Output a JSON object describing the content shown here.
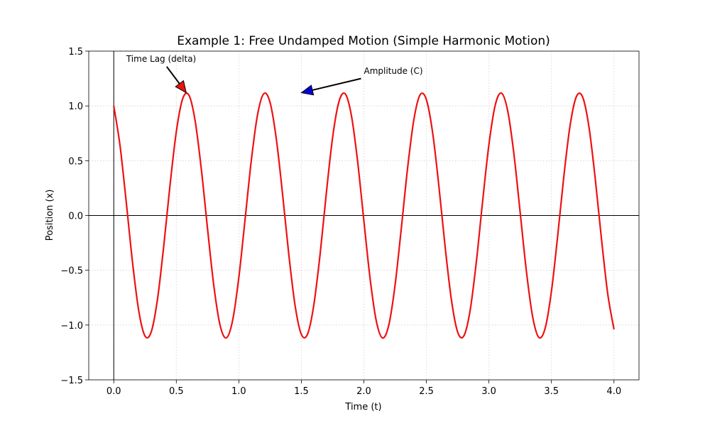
{
  "chart_data": {
    "type": "line",
    "title": "Example 1: Free Undamped Motion (Simple Harmonic Motion)",
    "xlabel": "Time (t)",
    "ylabel": "Position (x)",
    "x": [
      0,
      0.05,
      0.1,
      0.15,
      0.2,
      0.25,
      0.3,
      0.35,
      0.4,
      0.45,
      0.5,
      0.55,
      0.6,
      0.65,
      0.7,
      0.75,
      0.8,
      0.85,
      0.9,
      0.95,
      1,
      1.05,
      1.1,
      1.15,
      1.2,
      1.25,
      1.3,
      1.35,
      1.4,
      1.45,
      1.5,
      1.55,
      1.6,
      1.65,
      1.7,
      1.75,
      1.8,
      1.85,
      1.9,
      1.95,
      2,
      2.05,
      2.1,
      2.15,
      2.2,
      2.25,
      2.3,
      2.35,
      2.4,
      2.45,
      2.5,
      2.55,
      2.6,
      2.65,
      2.7,
      2.75,
      2.8,
      2.85,
      2.9,
      2.95,
      3,
      3.05,
      3.1,
      3.15,
      3.2,
      3.25,
      3.3,
      3.35,
      3.4,
      3.45,
      3.5,
      3.55,
      3.6,
      3.65,
      3.7,
      3.75,
      3.8,
      3.85,
      3.9,
      3.95,
      4
    ],
    "values": [
      1.0,
      0.638,
      0.12,
      -0.428,
      -0.871,
      -1.1,
      -1.061,
      -0.761,
      -0.275,
      0.278,
      0.763,
      1.062,
      1.1,
      0.869,
      0.425,
      -0.122,
      -0.64,
      -1.001,
      -1.117,
      -0.96,
      -0.567,
      -0.036,
      0.504,
      0.921,
      1.112,
      1.031,
      0.697,
      0.193,
      -0.359,
      -0.822,
      -1.085,
      -1.082,
      -0.814,
      -0.353,
      0.206,
      0.712,
      1.036,
      1.111,
      0.914,
      0.493,
      -0.048,
      -0.578,
      -0.966,
      -1.118,
      -0.996,
      -0.63,
      -0.11,
      0.437,
      0.877,
      1.102,
      1.057,
      0.754,
      0.266,
      -0.288,
      -0.77,
      -1.064,
      -1.098,
      -0.864,
      -0.416,
      0.134,
      0.648,
      1.005,
      1.117,
      0.955,
      0.559,
      0.025,
      -0.513,
      -0.927,
      -1.113,
      -1.027,
      -0.69,
      -0.184,
      0.368,
      0.829,
      1.087,
      1.079,
      0.807,
      0.337,
      -0.215,
      -0.715,
      -1.039
    ],
    "color": "#ee1111",
    "xlim": [
      -0.2,
      4.2
    ],
    "xticks": [
      {
        "value": 0,
        "label": "0.0"
      },
      {
        "value": 0.5,
        "label": "0.5"
      },
      {
        "value": 1,
        "label": "1.0"
      },
      {
        "value": 1.5,
        "label": "1.5"
      },
      {
        "value": 2,
        "label": "2.0"
      },
      {
        "value": 2.5,
        "label": "2.5"
      },
      {
        "value": 3,
        "label": "3.0"
      },
      {
        "value": 3.5,
        "label": "3.5"
      },
      {
        "value": 4,
        "label": "4.0"
      }
    ],
    "ylim": [
      -1.5,
      1.5
    ],
    "yticks": [
      {
        "value": -1.5,
        "label": "−1.5"
      },
      {
        "value": -1,
        "label": "−1.0"
      },
      {
        "value": -0.5,
        "label": "−0.5"
      },
      {
        "value": 0,
        "label": "0.0"
      },
      {
        "value": 0.5,
        "label": "0.5"
      },
      {
        "value": 1,
        "label": "1.0"
      },
      {
        "value": 1.5,
        "label": "1.5"
      }
    ],
    "grid": true,
    "annotations": [
      {
        "text": "Time Lag (delta)",
        "xy": [
          0.58,
          1.12
        ],
        "xytext": [
          0.1,
          1.43
        ],
        "color": "#ee1111"
      },
      {
        "text": "Amplitude (C)",
        "xy": [
          1.5,
          1.12
        ],
        "xytext": [
          2.0,
          1.32
        ],
        "color": "#0000dd"
      }
    ]
  }
}
